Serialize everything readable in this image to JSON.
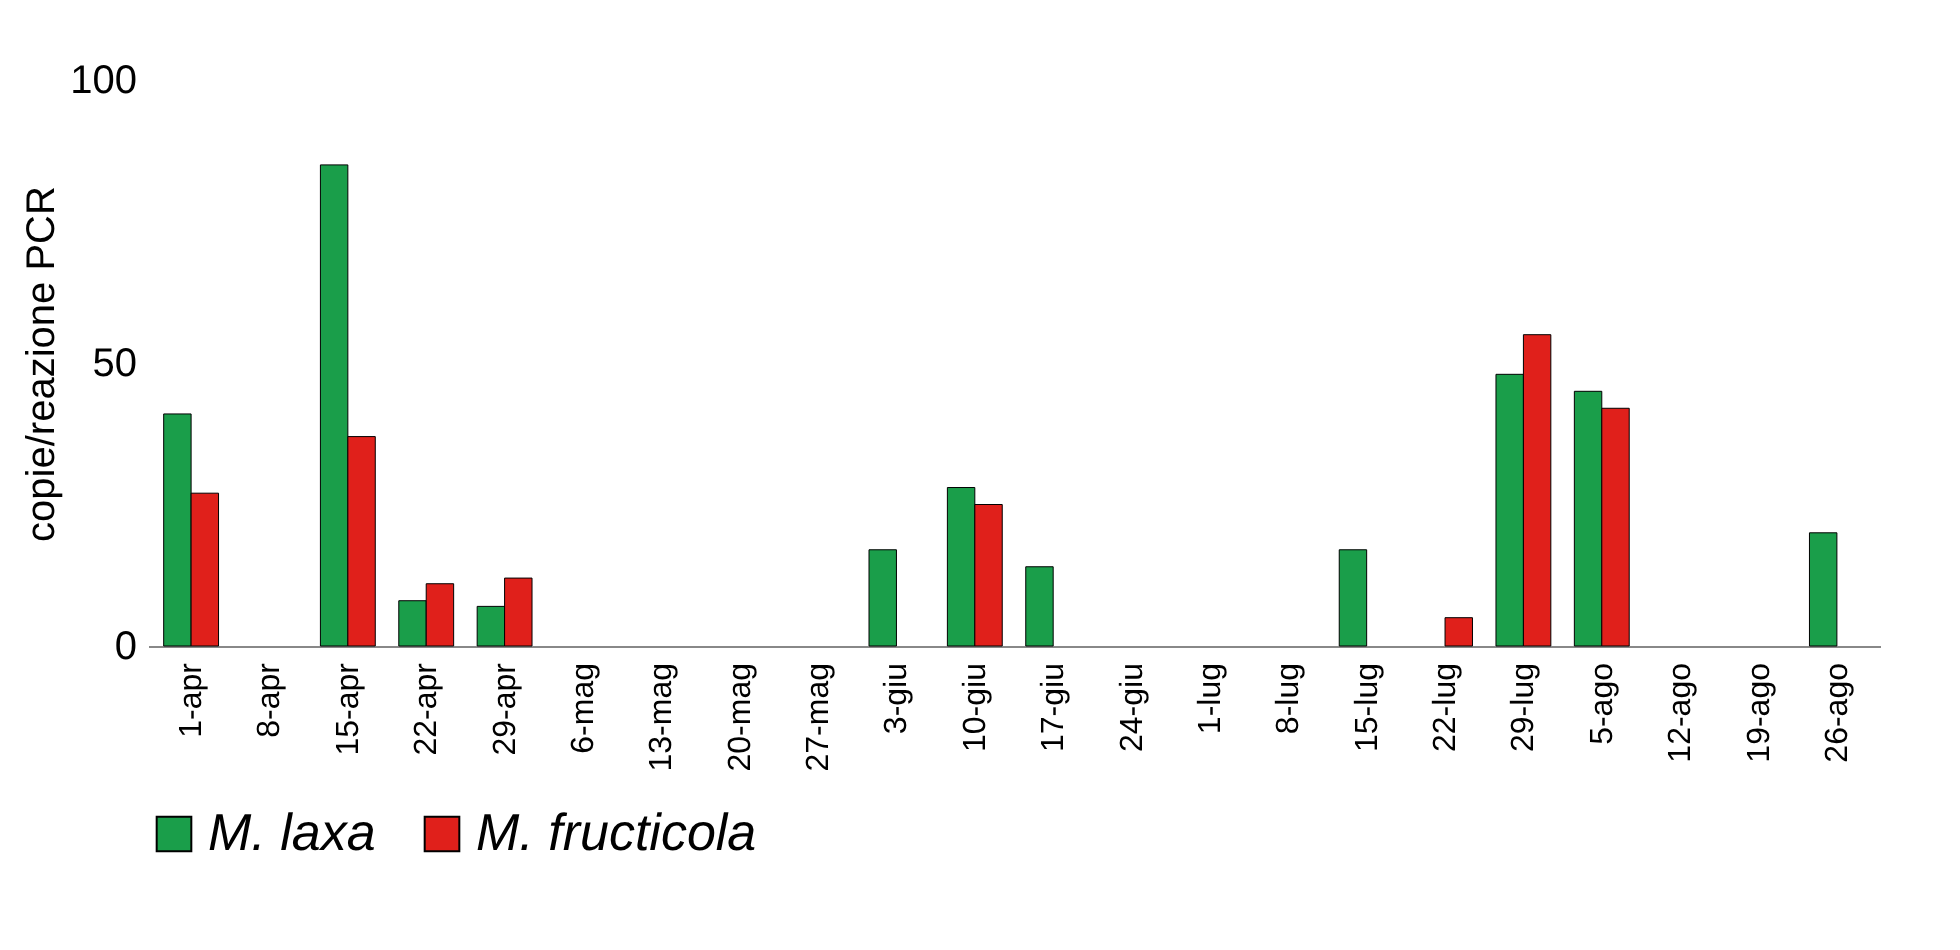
{
  "chart_data": {
    "type": "bar",
    "ylabel": "copie/reazione PCR",
    "categories": [
      "1-apr",
      "8-apr",
      "15-apr",
      "22-apr",
      "29-apr",
      "6-mag",
      "13-mag",
      "20-mag",
      "27-mag",
      "3-giu",
      "10-giu",
      "17-giu",
      "24-giu",
      "1-lug",
      "8-lug",
      "15-lug",
      "22-lug",
      "29-lug",
      "5-ago",
      "12-ago",
      "19-ago",
      "26-ago"
    ],
    "series": [
      {
        "name": "M. laxa",
        "color": "#1a9e4a",
        "values": [
          41,
          null,
          85,
          8,
          7,
          null,
          null,
          null,
          null,
          17,
          28,
          14,
          null,
          null,
          null,
          17,
          null,
          48,
          45,
          null,
          null,
          20
        ]
      },
      {
        "name": "M. fructicola",
        "color": "#e0201b",
        "values": [
          27,
          null,
          37,
          11,
          12,
          null,
          null,
          null,
          null,
          null,
          25,
          null,
          null,
          null,
          null,
          null,
          5,
          55,
          42,
          null,
          null,
          null
        ]
      }
    ],
    "ylim": [
      0,
      100
    ],
    "yticks": [
      0,
      50,
      100
    ],
    "grid": false,
    "legend": "bottom"
  }
}
